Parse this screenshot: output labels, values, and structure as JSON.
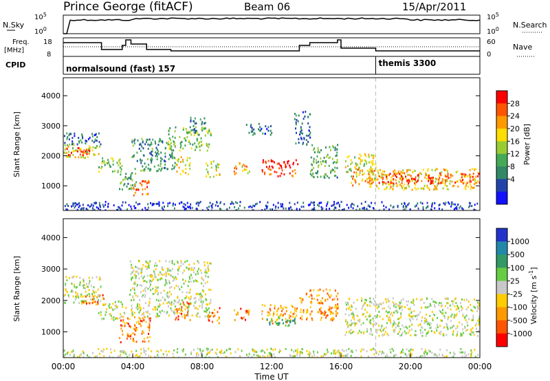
{
  "header": {
    "station": "Prince George (fitACF)",
    "beam": "Beam 06",
    "date": "15/Apr/2011"
  },
  "top_panels": {
    "nsky": {
      "label": "N.Sky",
      "right_label": "N.Search",
      "ticks_left": [
        "10^5",
        "10^0"
      ],
      "ticks_right": [
        "10^5",
        "10^0"
      ]
    },
    "freq": {
      "label_line1": "Freq.",
      "label_line2": "[MHz]",
      "right_label": "Nave",
      "ticks_left": [
        "18",
        "8"
      ],
      "ticks_right": [
        "60",
        "0"
      ]
    },
    "cpid": {
      "label": "CPID",
      "segments": [
        {
          "start_hour": 0.0,
          "text": "normalsound (fast) 157"
        },
        {
          "start_hour": 18.0,
          "text": "themis 3300"
        }
      ]
    }
  },
  "chart_data": [
    {
      "type": "heatmap",
      "name": "power-panel",
      "ylabel": "Slant Range [km]",
      "xlabel": "",
      "x_range_hours": [
        0,
        24
      ],
      "ylim": [
        180,
        4600
      ],
      "y_ticks": [
        "1000",
        "2000",
        "3000",
        "4000"
      ],
      "colorbar_label": "Power [dB]",
      "colorbar_ticks": [
        "28",
        "24",
        "20",
        "16",
        "12",
        "8",
        "4"
      ],
      "colorbar_colors": [
        "#ff0000",
        "#ff5500",
        "#ff9900",
        "#ffdd00",
        "#99cc33",
        "#44aa55",
        "#338866",
        "#2244aa",
        "#1111ff"
      ],
      "blobs": [
        {
          "t0": 0.0,
          "t1": 2.1,
          "r0": 1950,
          "r1": 2450,
          "level": 0.55
        },
        {
          "t0": 0.1,
          "t1": 1.8,
          "r0": 2050,
          "r1": 2300,
          "level": 0.9
        },
        {
          "t0": 0.0,
          "t1": 2.2,
          "r0": 2400,
          "r1": 2800,
          "level": 0.2
        },
        {
          "t0": 2.0,
          "t1": 3.4,
          "r0": 1450,
          "r1": 1950,
          "level": 0.45
        },
        {
          "t0": 3.2,
          "t1": 4.2,
          "r0": 900,
          "r1": 1600,
          "level": 0.35
        },
        {
          "t0": 4.0,
          "t1": 5.0,
          "r0": 700,
          "r1": 1200,
          "level": 0.85
        },
        {
          "t0": 3.9,
          "t1": 6.5,
          "r0": 1500,
          "r1": 2600,
          "level": 0.3
        },
        {
          "t0": 6.0,
          "t1": 8.5,
          "r0": 2200,
          "r1": 3000,
          "level": 0.45
        },
        {
          "t0": 7.2,
          "t1": 8.2,
          "r0": 2800,
          "r1": 3300,
          "level": 0.25
        },
        {
          "t0": 6.5,
          "t1": 7.3,
          "r0": 1400,
          "r1": 2000,
          "level": 0.6
        },
        {
          "t0": 8.2,
          "t1": 9.0,
          "r0": 1300,
          "r1": 1850,
          "level": 0.55
        },
        {
          "t0": 9.8,
          "t1": 10.7,
          "r0": 1400,
          "r1": 1800,
          "level": 0.7
        },
        {
          "t0": 10.5,
          "t1": 12.0,
          "r0": 2700,
          "r1": 3100,
          "level": 0.2
        },
        {
          "t0": 11.4,
          "t1": 13.5,
          "r0": 1350,
          "r1": 1900,
          "level": 0.95
        },
        {
          "t0": 13.3,
          "t1": 14.2,
          "r0": 2400,
          "r1": 3500,
          "level": 0.2
        },
        {
          "t0": 14.2,
          "t1": 15.8,
          "r0": 1300,
          "r1": 2400,
          "level": 0.35
        },
        {
          "t0": 16.2,
          "t1": 18.0,
          "r0": 1200,
          "r1": 2100,
          "level": 0.55
        },
        {
          "t0": 16.5,
          "t1": 17.8,
          "r0": 1000,
          "r1": 1600,
          "level": 0.75
        },
        {
          "t0": 17.8,
          "t1": 24.0,
          "r0": 900,
          "r1": 1600,
          "level": 0.65
        },
        {
          "t0": 18.0,
          "t1": 24.0,
          "r0": 1100,
          "r1": 1450,
          "level": 0.92
        },
        {
          "t0": 0.0,
          "t1": 24.0,
          "r0": 200,
          "r1": 500,
          "level": 0.1
        }
      ]
    },
    {
      "type": "heatmap",
      "name": "velocity-panel",
      "ylabel": "Slant Range [km]",
      "xlabel": "Time UT",
      "x_range_hours": [
        0,
        24
      ],
      "ylim": [
        180,
        4600
      ],
      "x_ticks": [
        "00:00",
        "04:00",
        "08:00",
        "12:00",
        "16:00",
        "20:00",
        "00:00"
      ],
      "y_ticks": [
        "1000",
        "2000",
        "3000",
        "4000"
      ],
      "colorbar_label": "Velocity [m s^-1]",
      "colorbar_ticks": [
        "1000",
        "500",
        "100",
        "25",
        "-25",
        "-100",
        "-500",
        "-1000"
      ],
      "colorbar_colors": [
        "#2233cc",
        "#2288aa",
        "#339966",
        "#66cc44",
        "#c8c8c8",
        "#ffcc00",
        "#ff9900",
        "#ff5500",
        "#ff0000"
      ],
      "blobs": [
        {
          "t0": 0.0,
          "t1": 2.2,
          "r0": 1950,
          "r1": 2800,
          "level": 0.5
        },
        {
          "t0": 1.0,
          "t1": 2.4,
          "r0": 1900,
          "r1": 2200,
          "level": 0.8
        },
        {
          "t0": 2.0,
          "t1": 3.6,
          "r0": 1400,
          "r1": 2000,
          "level": 0.5
        },
        {
          "t0": 3.2,
          "t1": 5.0,
          "r0": 700,
          "r1": 1500,
          "level": 0.82
        },
        {
          "t0": 3.8,
          "t1": 8.5,
          "r0": 1500,
          "r1": 3300,
          "level": 0.5
        },
        {
          "t0": 6.4,
          "t1": 7.3,
          "r0": 1400,
          "r1": 2000,
          "level": 0.82
        },
        {
          "t0": 8.3,
          "t1": 9.0,
          "r0": 1300,
          "r1": 1800,
          "level": 0.78
        },
        {
          "t0": 9.8,
          "t1": 10.7,
          "r0": 1400,
          "r1": 1800,
          "level": 0.82
        },
        {
          "t0": 11.4,
          "t1": 13.5,
          "r0": 1300,
          "r1": 1900,
          "level": 0.72
        },
        {
          "t0": 11.6,
          "t1": 13.4,
          "r0": 1200,
          "r1": 1500,
          "level": 0.3
        },
        {
          "t0": 13.6,
          "t1": 15.8,
          "r0": 1400,
          "r1": 2400,
          "level": 0.75
        },
        {
          "t0": 16.2,
          "t1": 24.0,
          "r0": 900,
          "r1": 2100,
          "level": 0.5
        },
        {
          "t0": 0.0,
          "t1": 24.0,
          "r0": 200,
          "r1": 500,
          "level": 0.5
        }
      ]
    }
  ]
}
